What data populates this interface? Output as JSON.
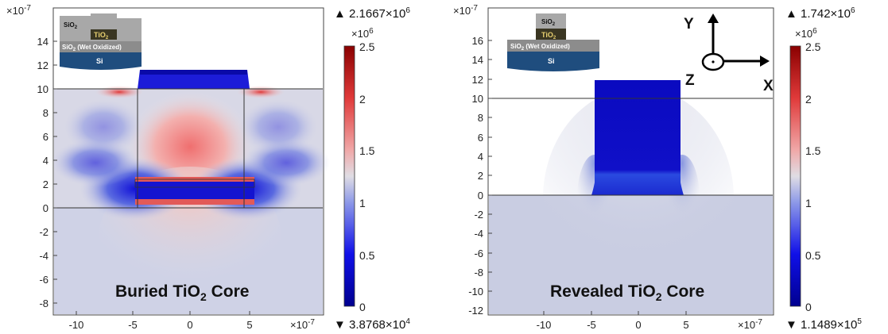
{
  "left_panel": {
    "caption_pre": "Buried TiO",
    "caption_sub": "2",
    "caption_post": " Core",
    "y_exponent": "×10",
    "y_exponent_power": "-7",
    "x_exponent": "×10",
    "x_exponent_power": "-7",
    "y_ticks": [
      "14",
      "12",
      "10",
      "8",
      "6",
      "4",
      "2",
      "0",
      "-2",
      "-4",
      "-6",
      "-8"
    ],
    "x_ticks": [
      "-10",
      "-5",
      "0",
      "5"
    ],
    "colorbar": {
      "max_marker": "▲ 2.1667×10",
      "max_power": "6",
      "scale_label": "×10",
      "scale_power": "6",
      "ticks": [
        "2.5",
        "2",
        "1.5",
        "1",
        "0.5",
        "0"
      ],
      "min_marker": "▼ 3.8768×10",
      "min_power": "4"
    },
    "inset": {
      "top_oxide": "SiO",
      "top_oxide_sub": "2",
      "core": "TiO",
      "core_sub": "2",
      "wet_oxide": "SiO",
      "wet_oxide_sub": "2",
      "wet_oxide_suffix": " (Wet Oxidized)",
      "substrate": "Si"
    }
  },
  "right_panel": {
    "caption_pre": "Revealed TiO",
    "caption_sub": "2",
    "caption_post": " Core",
    "y_exponent": "×10",
    "y_exponent_power": "-7",
    "x_exponent": "×10",
    "x_exponent_power": "-7",
    "y_ticks": [
      "16",
      "14",
      "12",
      "10",
      "8",
      "6",
      "4",
      "2",
      "0",
      "-2",
      "-4",
      "-6",
      "-8",
      "-10",
      "-12"
    ],
    "x_ticks": [
      "-10",
      "-5",
      "0",
      "5"
    ],
    "colorbar": {
      "max_marker": "▲ 1.742×10",
      "max_power": "6",
      "scale_label": "×10",
      "scale_power": "6",
      "ticks": [
        "2.5",
        "2",
        "1.5",
        "1",
        "0.5",
        "0"
      ],
      "min_marker": "▼ 1.1489×10",
      "min_power": "5"
    },
    "inset": {
      "top_oxide": "SiO",
      "top_oxide_sub": "2",
      "core": "TiO",
      "core_sub": "2",
      "wet_oxide": "SiO",
      "wet_oxide_sub": "2",
      "wet_oxide_suffix": " (Wet Oxidized)",
      "substrate": "Si"
    },
    "axes_triad": {
      "y": "Y",
      "x": "X",
      "z": "Z"
    }
  },
  "colors": {
    "blue": "#0a14b4",
    "red": "#c8323c",
    "neutral": "#c8cce0",
    "oxide_gray": "#a8a8a8",
    "core_dark": "#3a3622",
    "substrate_blue": "#1f4d7e"
  }
}
